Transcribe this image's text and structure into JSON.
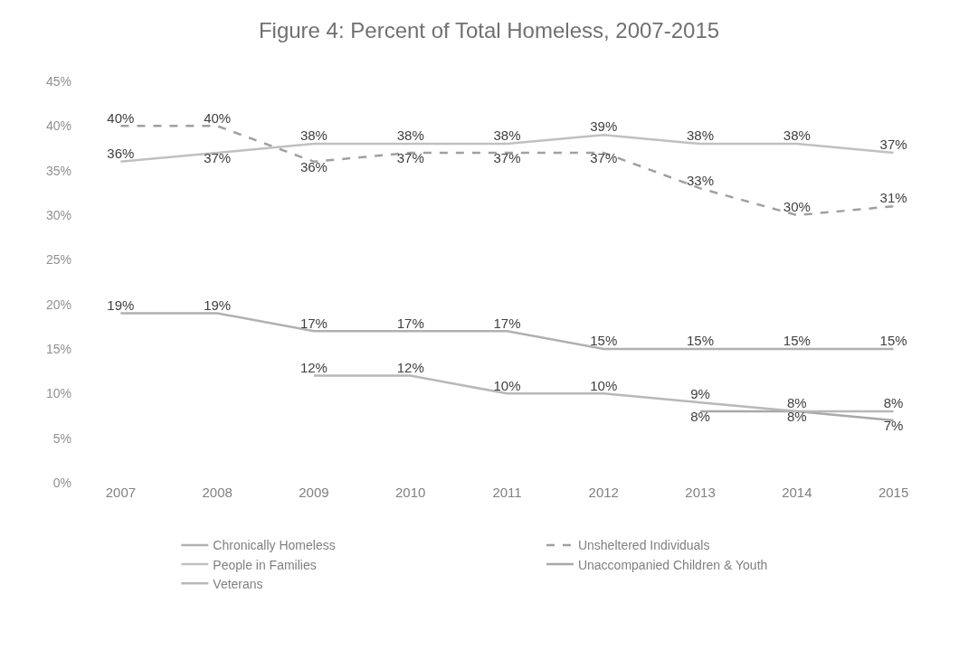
{
  "chart_data": {
    "type": "line",
    "title": "Figure 4: Percent of Total Homeless, 2007-2015",
    "categories": [
      "2007",
      "2008",
      "2009",
      "2010",
      "2011",
      "2012",
      "2013",
      "2014",
      "2015"
    ],
    "ylim": [
      0,
      45
    ],
    "yticks": [
      {
        "value": 0,
        "label": "0%"
      },
      {
        "value": 5,
        "label": "5%"
      },
      {
        "value": 10,
        "label": "10%"
      },
      {
        "value": 15,
        "label": "15%"
      },
      {
        "value": 20,
        "label": "20%"
      },
      {
        "value": 25,
        "label": "25%"
      },
      {
        "value": 30,
        "label": "30%"
      },
      {
        "value": 35,
        "label": "35%"
      },
      {
        "value": 40,
        "label": "40%"
      },
      {
        "value": 45,
        "label": "45%"
      }
    ],
    "grid": false,
    "legend": "bottom",
    "marker": "none",
    "series": [
      {
        "name": "Chronically Homeless",
        "color": "#b0b0b0",
        "line_style": "solid",
        "values": [
          19,
          19,
          17,
          17,
          17,
          15,
          15,
          15,
          15
        ],
        "value_labels": [
          "19%",
          "19%",
          "17%",
          "17%",
          "17%",
          "15%",
          "15%",
          "15%",
          "15%"
        ]
      },
      {
        "name": "Unsheltered Individuals",
        "color": "#a0a0a0",
        "line_style": "dashed",
        "values": [
          40,
          40,
          36,
          37,
          37,
          37,
          33,
          30,
          31
        ],
        "value_labels": [
          "40%",
          "40%",
          "36%",
          "37%",
          "37%",
          "37%",
          "33%",
          "30%",
          "31%"
        ]
      },
      {
        "name": "People in Families",
        "color": "#c0c0c0",
        "line_style": "solid",
        "values": [
          36,
          37,
          38,
          38,
          38,
          39,
          38,
          38,
          37
        ],
        "value_labels": [
          "36%",
          "37%",
          "38%",
          "38%",
          "38%",
          "39%",
          "38%",
          "38%",
          "37%"
        ]
      },
      {
        "name": "Unaccompanied Children & Youth",
        "color": "#a8a8a8",
        "line_style": "solid",
        "values": [
          null,
          null,
          null,
          null,
          null,
          null,
          8,
          8,
          7
        ],
        "value_labels": [
          null,
          null,
          null,
          null,
          null,
          null,
          "8%",
          "8%",
          "7%"
        ]
      },
      {
        "name": "Veterans",
        "color": "#b8b8b8",
        "line_style": "solid",
        "values": [
          null,
          null,
          12,
          12,
          10,
          10,
          9,
          8,
          8
        ],
        "value_labels": [
          null,
          null,
          "12%",
          "12%",
          "10%",
          "10%",
          "9%",
          "8%",
          "8%"
        ]
      }
    ]
  }
}
